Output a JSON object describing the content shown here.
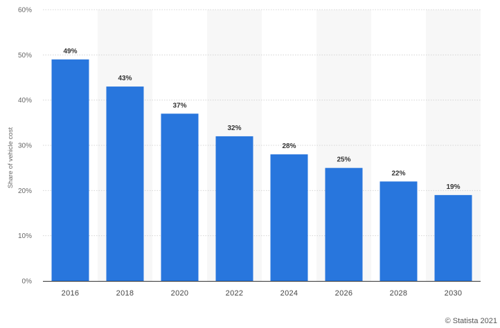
{
  "chart_data": {
    "type": "bar",
    "categories": [
      "2016",
      "2018",
      "2020",
      "2022",
      "2024",
      "2026",
      "2028",
      "2030"
    ],
    "values": [
      49,
      43,
      37,
      32,
      28,
      25,
      22,
      19
    ],
    "data_labels": [
      "49%",
      "43%",
      "37%",
      "32%",
      "28%",
      "25%",
      "22%",
      "19%"
    ],
    "title": "",
    "xlabel": "",
    "ylabel": "Share of vehicle cost",
    "ylim": [
      0,
      60
    ],
    "yticks": [
      0,
      10,
      20,
      30,
      40,
      50,
      60
    ],
    "ytick_labels": [
      "0%",
      "10%",
      "20%",
      "30%",
      "40%",
      "50%",
      "60%"
    ],
    "grid": true,
    "bar_color": "#2876dd",
    "band_color": "#f7f7f7"
  },
  "credit": "© Statista 2021"
}
